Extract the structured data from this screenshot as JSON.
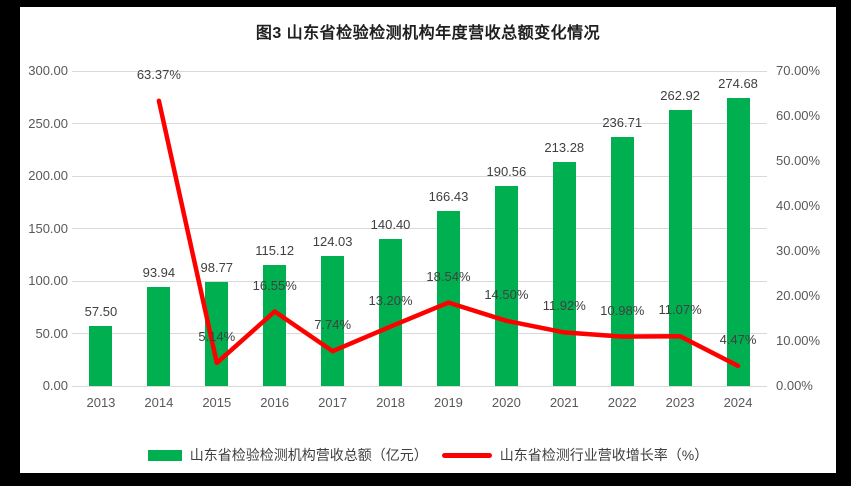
{
  "chart_data": {
    "type": "bar+line",
    "title": "图3  山东省检验检测机构年度营收总额变化情况",
    "categories": [
      "2013",
      "2014",
      "2015",
      "2016",
      "2017",
      "2018",
      "2019",
      "2020",
      "2021",
      "2022",
      "2023",
      "2024"
    ],
    "series": [
      {
        "name": "山东省检验检测机构营收总额（亿元）",
        "type": "bar",
        "axis": "left",
        "color": "#00B050",
        "values": [
          57.5,
          93.94,
          98.77,
          115.12,
          124.03,
          140.4,
          166.43,
          190.56,
          213.28,
          236.71,
          262.92,
          274.68
        ],
        "labels": [
          "57.50",
          "93.94",
          "98.77",
          "115.12",
          "124.03",
          "140.40",
          "166.43",
          "190.56",
          "213.28",
          "236.71",
          "262.92",
          "274.68"
        ]
      },
      {
        "name": "山东省检测行业营收增长率（%）",
        "type": "line",
        "axis": "right",
        "color": "#FF0000",
        "values": [
          null,
          63.37,
          5.14,
          16.55,
          7.74,
          13.2,
          18.54,
          14.5,
          11.92,
          10.98,
          11.07,
          4.47
        ],
        "labels": [
          "",
          "63.37%",
          "5.14%",
          "16.55%",
          "7.74%",
          "13.20%",
          "18.54%",
          "14.50%",
          "11.92%",
          "10.98%",
          "11.07%",
          "4.47%"
        ]
      }
    ],
    "left_axis": {
      "min": 0,
      "max": 300,
      "step": 50,
      "tick_labels": [
        "0.00",
        "50.00",
        "100.00",
        "150.00",
        "200.00",
        "250.00",
        "300.00"
      ]
    },
    "right_axis": {
      "min": 0,
      "max": 70,
      "step": 10,
      "tick_labels": [
        "0.00%",
        "10.00%",
        "20.00%",
        "30.00%",
        "40.00%",
        "50.00%",
        "60.00%",
        "70.00%"
      ]
    },
    "grid": "horizontal",
    "legend_position": "bottom",
    "colors": {
      "bar": "#00B050",
      "line": "#FF0000",
      "gridline": "#D9D9D9",
      "axis_text": "#595959",
      "data_label_text": "#404040"
    }
  }
}
